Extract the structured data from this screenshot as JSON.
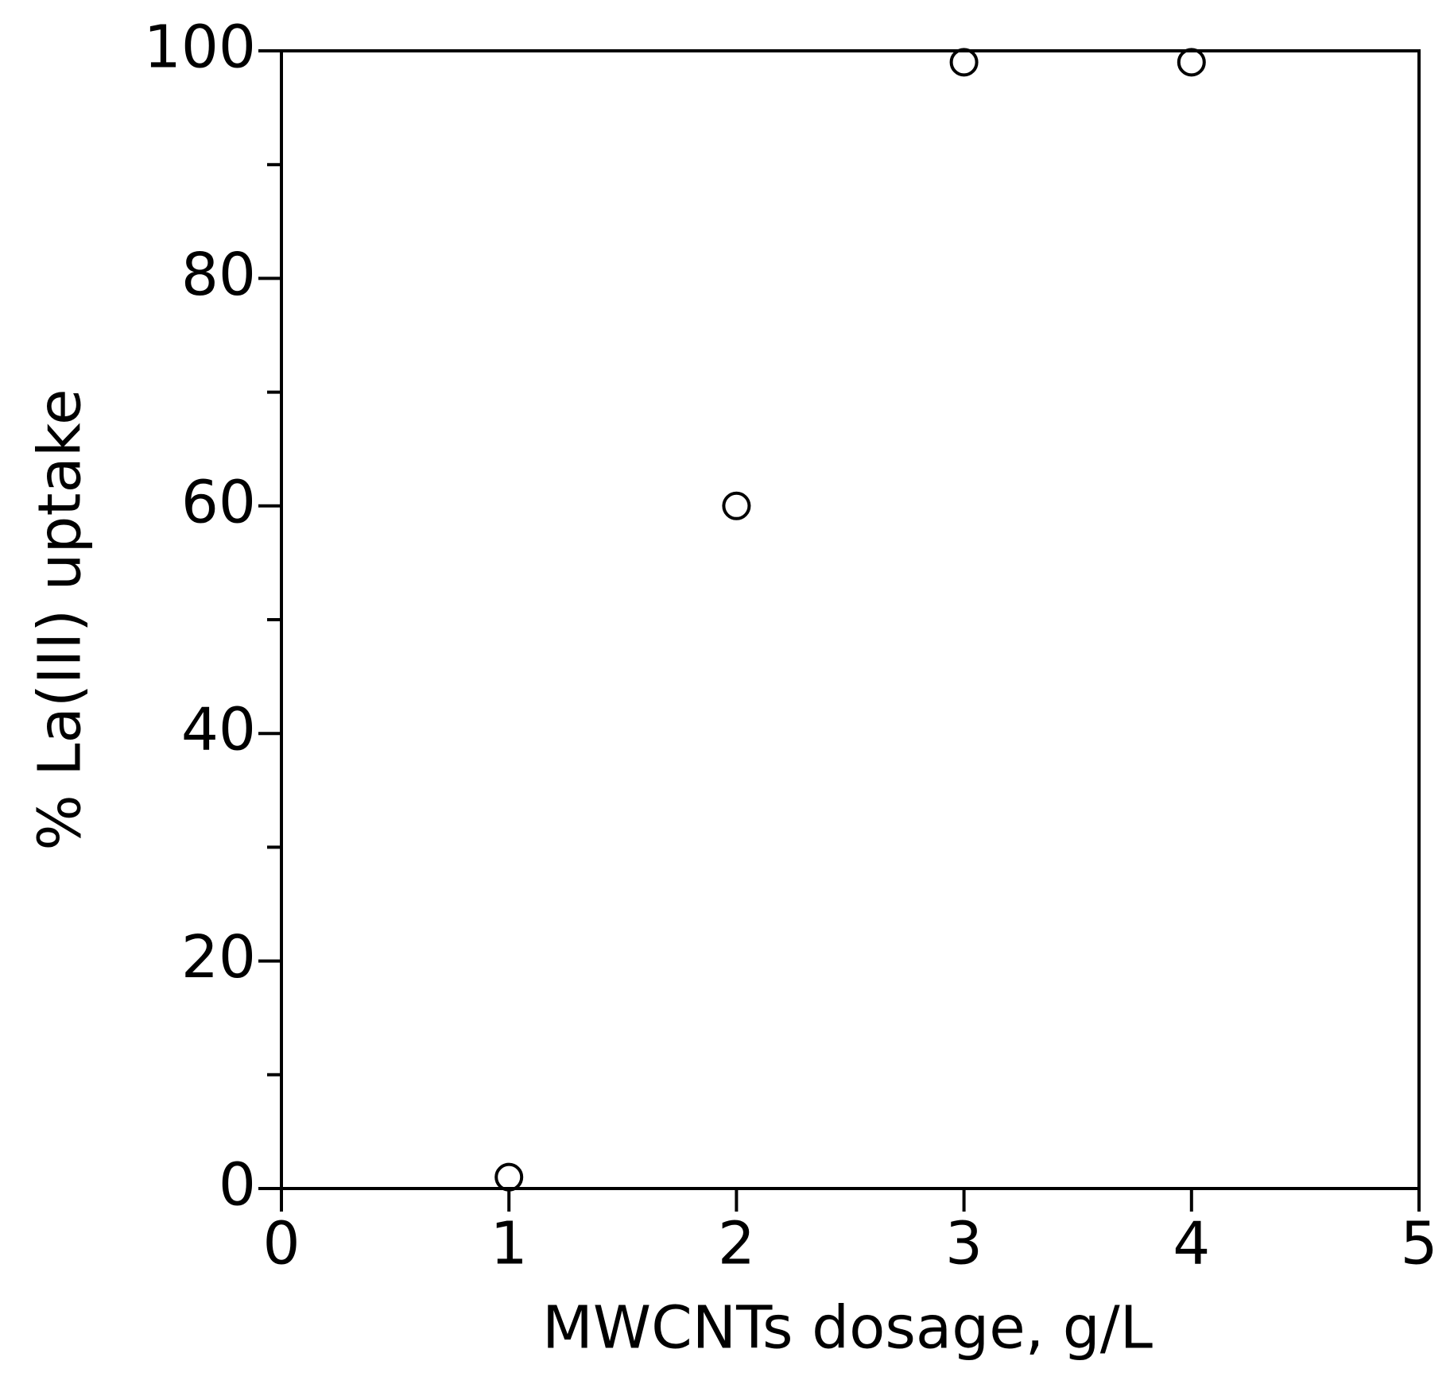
{
  "chart_data": {
    "type": "scatter",
    "x_label": "MWCNTs dosage, g/L",
    "y_label": "% La(III) uptake",
    "series": [
      {
        "x": [
          1,
          2,
          3,
          4
        ],
        "values": [
          1,
          60,
          99,
          99
        ],
        "color": "#000000"
      }
    ],
    "xlim": [
      0,
      5
    ],
    "xticks": [
      0,
      1,
      2,
      3,
      4,
      5
    ],
    "ylim": [
      0,
      100
    ],
    "yticks": [
      0,
      20,
      40,
      60,
      80,
      100
    ],
    "yminorticks": [
      10,
      30,
      50,
      70,
      90
    ],
    "grid": false
  }
}
